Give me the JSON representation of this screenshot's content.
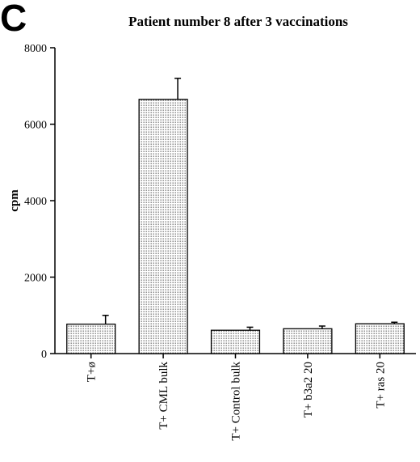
{
  "panel_label": "C",
  "chart_data": {
    "type": "bar",
    "title": "Patient number 8 after 3 vaccinations",
    "xlabel": "",
    "ylabel": "cpm",
    "ylim": [
      0,
      8000
    ],
    "yticks": [
      0,
      2000,
      4000,
      6000,
      8000
    ],
    "grid": false,
    "categories": [
      "T+ø",
      "T+ CML bulk",
      "T+ Control bulk",
      "T+ b3a2 20",
      "T+ ras 20"
    ],
    "values": [
      770,
      6650,
      610,
      650,
      780
    ],
    "error_upper": [
      1000,
      7200,
      690,
      720,
      820
    ],
    "bar_fill": "dotted",
    "colors": {
      "bar_dot": "#000000",
      "bar_background": "#ffffff",
      "axis": "#000000"
    }
  }
}
